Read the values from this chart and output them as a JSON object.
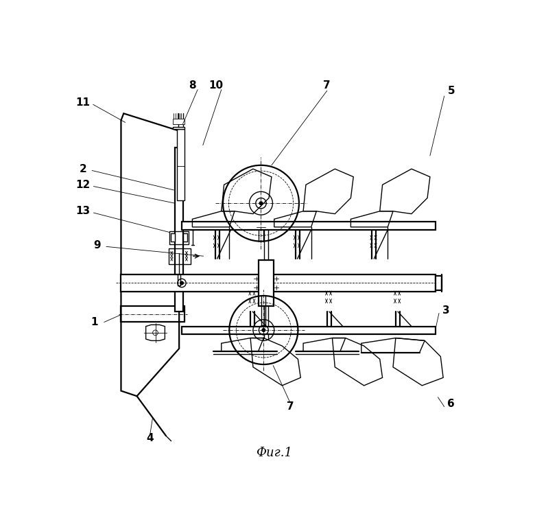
{
  "title": "Фиг.1",
  "bg_color": "#ffffff",
  "line_color": "#000000",
  "lw": 1.0,
  "lw_thick": 1.6,
  "lw_thin": 0.6,
  "label_fs": 11
}
